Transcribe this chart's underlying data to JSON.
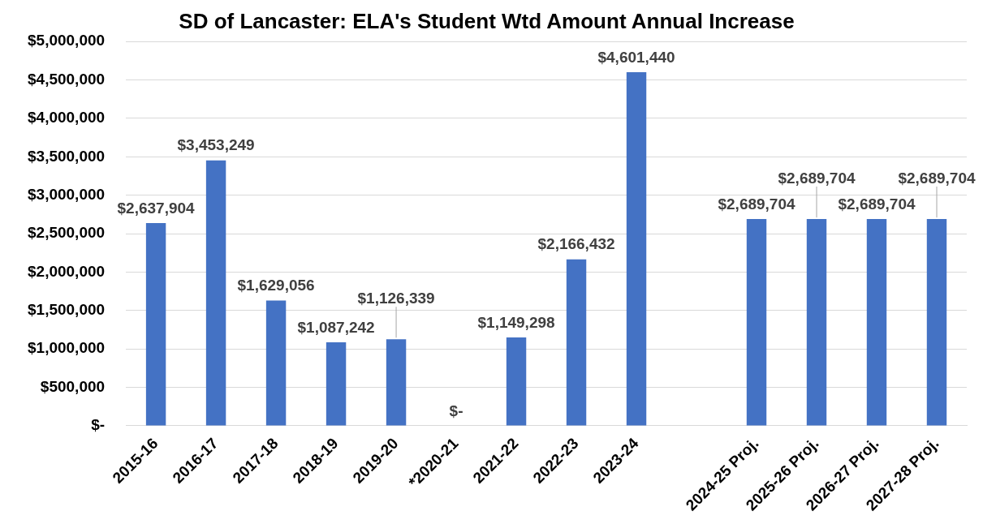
{
  "chart_data": {
    "type": "bar",
    "title": "SD of Lancaster: ELA's Student Wtd Amount Annual Increase",
    "categories": [
      "2015-16",
      "2016-17",
      "2017-18",
      "2018-19",
      "2019-20",
      "*2020-21",
      "2021-22",
      "2022-23",
      "2023-24",
      null,
      "2024-25 Proj.",
      "2025-26 Proj.",
      "2026-27 Proj.",
      "2027-28 Proj."
    ],
    "values": [
      2637904,
      3453249,
      1629056,
      1087242,
      1126339,
      0,
      1149298,
      2166432,
      4601440,
      null,
      2689704,
      2689704,
      2689704,
      2689704
    ],
    "value_labels": [
      "$2,637,904",
      "$3,453,249",
      "$1,629,056",
      "$1,087,242",
      "$1,126,339",
      "$-",
      "$1,149,298",
      "$2,166,432",
      "$4,601,440",
      null,
      "$2,689,704",
      "$2,689,704",
      "$2,689,704",
      "$2,689,704"
    ],
    "color": "#4472c4",
    "ylim": [
      0,
      5000000
    ],
    "yticks": [
      {
        "value": 0,
        "label": "$-"
      },
      {
        "value": 500000,
        "label": "$500,000"
      },
      {
        "value": 1000000,
        "label": "$1,000,000"
      },
      {
        "value": 1500000,
        "label": "$1,500,000"
      },
      {
        "value": 2000000,
        "label": "$2,000,000"
      },
      {
        "value": 2500000,
        "label": "$2,500,000"
      },
      {
        "value": 3000000,
        "label": "$3,000,000"
      },
      {
        "value": 3500000,
        "label": "$3,500,000"
      },
      {
        "value": 4000000,
        "label": "$4,000,000"
      },
      {
        "value": 4500000,
        "label": "$4,500,000"
      },
      {
        "value": 5000000,
        "label": "$5,000,000"
      }
    ],
    "grid": "y",
    "legend": false
  }
}
